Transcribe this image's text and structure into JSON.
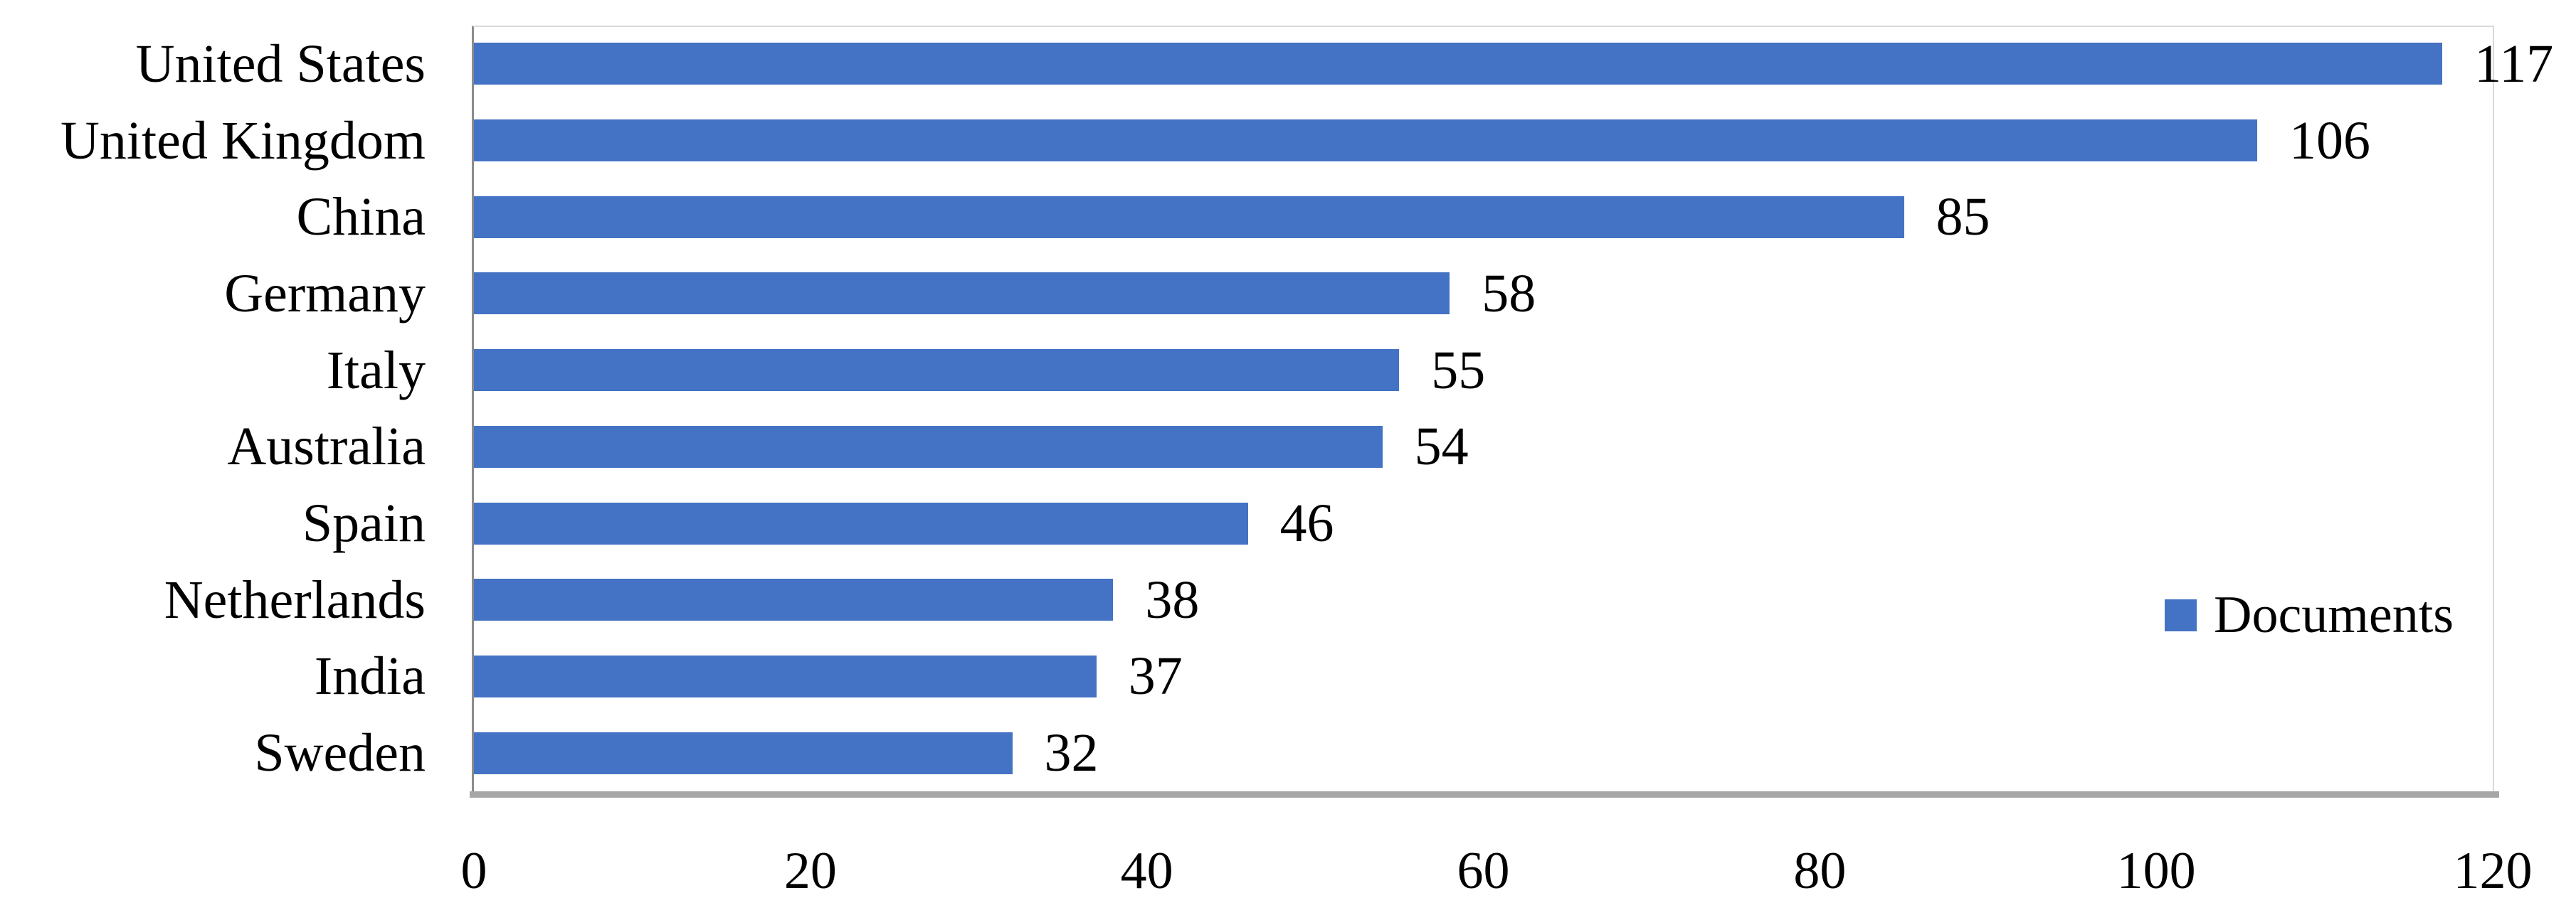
{
  "chart_data": {
    "type": "bar",
    "orientation": "horizontal",
    "title": "",
    "xlabel": "",
    "ylabel": "",
    "categories": [
      "United States",
      "United Kingdom",
      "China",
      "Germany",
      "Italy",
      "Australia",
      "Spain",
      "Netherlands",
      "India",
      "Sweden"
    ],
    "values": [
      117,
      106,
      85,
      58,
      55,
      54,
      46,
      38,
      37,
      32
    ],
    "data_labels": [
      "117",
      "106",
      "85",
      "58",
      "55",
      "54",
      "46",
      "38",
      "37",
      "32"
    ],
    "xlim": [
      0,
      120
    ],
    "x_ticks": [
      "0",
      "20",
      "40",
      "60",
      "80",
      "100",
      "120"
    ],
    "x_tick_values": [
      0,
      20,
      40,
      60,
      80,
      100,
      120
    ],
    "grid": "right-edge-only",
    "legend": {
      "label": "Documents",
      "position": "right-middle"
    },
    "colors": {
      "bar": "#4472C4",
      "legend_swatch": "#4472C4",
      "axis_line": "#8c8c8c",
      "baseline_shadow": "#a6a6a6",
      "plot_border": "#d9d9d9",
      "text": "#000000"
    }
  }
}
